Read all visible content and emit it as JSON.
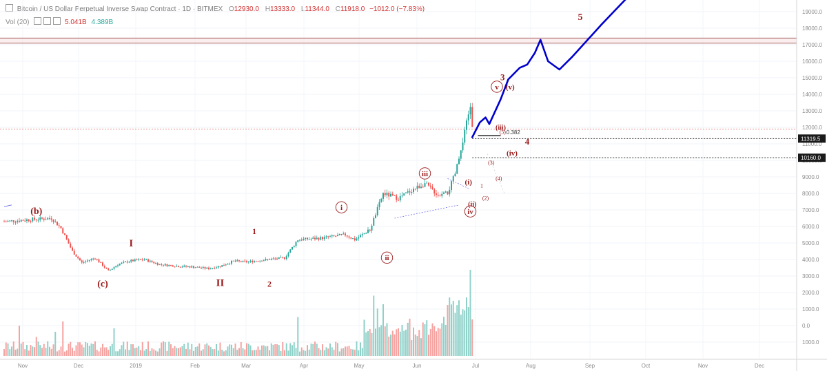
{
  "header": {
    "symbol": "Bitcoin / US Dollar Perpetual Inverse Swap Contract · 1D · BITMEX",
    "o_label": "O",
    "o": "12930.0",
    "h_label": "H",
    "h": "13333.0",
    "l_label": "L",
    "l": "11344.0",
    "c_label": "C",
    "c": "11918.0",
    "chg": "−1012.0 (−7.83%)"
  },
  "vol_indicator": {
    "label": "Vol (20)",
    "v1": "5.041B",
    "v2": "4.389B"
  },
  "colors": {
    "up": "#26a69a",
    "down": "#ef5350",
    "wave": "#0000cc",
    "label": "#9b1b1b",
    "hline": "#a33a3a"
  },
  "chart_data": {
    "type": "candlestick",
    "x_ticks": [
      "Nov",
      "Dec",
      "2019",
      "Feb",
      "Mar",
      "Apr",
      "May",
      "Jun",
      "Jul",
      "Aug",
      "Sep",
      "Oct",
      "Nov",
      "Dec"
    ],
    "price_ticks": [
      "19000.0",
      "18000.0",
      "17000.0",
      "16000.0",
      "15000.0",
      "14000.0",
      "13000.0",
      "12000.0",
      "11000.0",
      "10000.0",
      "9000.0",
      "8000.0",
      "7000.0",
      "6000.0",
      "5000.0",
      "4000.0",
      "3000.0",
      "2000.0",
      "1000.0",
      "0.0",
      "1000.0"
    ],
    "price_levels": [
      {
        "label": "11319.5",
        "value": 11319.5
      },
      {
        "label": "10160.0",
        "value": 10160.0
      }
    ],
    "horizontal_lines": [
      17400,
      17100,
      11900
    ],
    "fib": {
      "label": "0.382",
      "value": 11500
    },
    "anchors": [
      {
        "d": 0,
        "p": 6300
      },
      {
        "d": 12,
        "p": 6400
      },
      {
        "d": 25,
        "p": 6500
      },
      {
        "d": 30,
        "p": 5900
      },
      {
        "d": 36,
        "p": 4500
      },
      {
        "d": 41,
        "p": 3800
      },
      {
        "d": 48,
        "p": 4100
      },
      {
        "d": 55,
        "p": 3300
      },
      {
        "d": 60,
        "p": 3700
      },
      {
        "d": 66,
        "p": 3900
      },
      {
        "d": 74,
        "p": 4000
      },
      {
        "d": 82,
        "p": 3700
      },
      {
        "d": 92,
        "p": 3600
      },
      {
        "d": 100,
        "p": 3550
      },
      {
        "d": 108,
        "p": 3450
      },
      {
        "d": 114,
        "p": 3600
      },
      {
        "d": 121,
        "p": 3900
      },
      {
        "d": 128,
        "p": 3850
      },
      {
        "d": 135,
        "p": 3950
      },
      {
        "d": 148,
        "p": 4100
      },
      {
        "d": 155,
        "p": 5200
      },
      {
        "d": 168,
        "p": 5300
      },
      {
        "d": 180,
        "p": 5500
      },
      {
        "d": 185,
        "p": 5200
      },
      {
        "d": 193,
        "p": 5800
      },
      {
        "d": 200,
        "p": 8000
      },
      {
        "d": 208,
        "p": 7700
      },
      {
        "d": 215,
        "p": 8200
      },
      {
        "d": 222,
        "p": 8600
      },
      {
        "d": 229,
        "p": 7900
      },
      {
        "d": 234,
        "p": 8000
      },
      {
        "d": 238,
        "p": 9200
      },
      {
        "d": 242,
        "p": 11000
      },
      {
        "d": 244,
        "p": 12300
      },
      {
        "d": 246,
        "p": 13300
      },
      {
        "d": 247,
        "p": 11900
      }
    ],
    "volume_spikes": [
      {
        "d": 8,
        "v": 0.35
      },
      {
        "d": 17,
        "v": 0.22
      },
      {
        "d": 27,
        "v": 0.28
      },
      {
        "d": 31,
        "v": 0.4
      },
      {
        "d": 58,
        "v": 0.32
      },
      {
        "d": 155,
        "v": 0.45
      },
      {
        "d": 190,
        "v": 0.42
      },
      {
        "d": 195,
        "v": 0.7
      },
      {
        "d": 197,
        "v": 0.55
      },
      {
        "d": 200,
        "v": 0.6
      },
      {
        "d": 238,
        "v": 0.5
      },
      {
        "d": 244,
        "v": 0.68
      },
      {
        "d": 246,
        "v": 1.0
      }
    ],
    "projection": [
      {
        "d": 247,
        "p": 11400
      },
      {
        "d": 251,
        "p": 12300
      },
      {
        "d": 254,
        "p": 12600
      },
      {
        "d": 256,
        "p": 12200
      },
      {
        "d": 262,
        "p": 13700
      },
      {
        "d": 266,
        "p": 14900
      },
      {
        "d": 272,
        "p": 15600
      },
      {
        "d": 276,
        "p": 15800
      },
      {
        "d": 280,
        "p": 16500
      },
      {
        "d": 283,
        "p": 17300
      },
      {
        "d": 287,
        "p": 16000
      },
      {
        "d": 293,
        "p": 15500
      },
      {
        "d": 300,
        "p": 16300
      },
      {
        "d": 315,
        "p": 18200
      },
      {
        "d": 330,
        "p": 20000
      }
    ],
    "wave_labels": [
      {
        "text": "(b)",
        "d": 17,
        "p": 6750,
        "kind": "plain",
        "size": 14
      },
      {
        "text": "(c)",
        "d": 52,
        "p": 2350,
        "kind": "plain",
        "size": 14
      },
      {
        "text": "I",
        "d": 67,
        "p": 4800,
        "kind": "plain",
        "size": 15
      },
      {
        "text": "II",
        "d": 114,
        "p": 2400,
        "kind": "plain",
        "size": 15
      },
      {
        "text": "1",
        "d": 132,
        "p": 5550,
        "kind": "plain",
        "size": 12
      },
      {
        "text": "2",
        "d": 140,
        "p": 2350,
        "kind": "plain",
        "size": 12
      },
      {
        "text": "i",
        "d": 178,
        "p": 7000,
        "kind": "circle",
        "size": 11
      },
      {
        "text": "ii",
        "d": 202,
        "p": 3950,
        "kind": "circle",
        "size": 11
      },
      {
        "text": "iii",
        "d": 222,
        "p": 9050,
        "kind": "circle",
        "size": 11
      },
      {
        "text": "(i)",
        "d": 245,
        "p": 8550,
        "kind": "plain",
        "size": 11
      },
      {
        "text": "(ii)",
        "d": 247,
        "p": 7200,
        "kind": "plain",
        "size": 10
      },
      {
        "text": "iv",
        "d": 246,
        "p": 6750,
        "kind": "circle",
        "size": 11
      },
      {
        "text": "(iii)",
        "d": 262,
        "p": 11850,
        "kind": "plain",
        "size": 10
      },
      {
        "text": "(iv)",
        "d": 268,
        "p": 10300,
        "kind": "plain",
        "size": 11
      },
      {
        "text": "(v)",
        "d": 267,
        "p": 14300,
        "kind": "plain",
        "size": 11
      },
      {
        "text": "v",
        "d": 260,
        "p": 14300,
        "kind": "circle",
        "size": 11
      },
      {
        "text": "3",
        "d": 263,
        "p": 14850,
        "kind": "plain",
        "size": 13
      },
      {
        "text": "4",
        "d": 276,
        "p": 10950,
        "kind": "plain",
        "size": 13
      },
      {
        "text": "5",
        "d": 304,
        "p": 18500,
        "kind": "plain",
        "size": 14
      },
      {
        "text": "1",
        "d": 252,
        "p": 8350,
        "kind": "small",
        "size": 8
      },
      {
        "text": "(2)",
        "d": 254,
        "p": 7600,
        "kind": "small",
        "size": 8
      },
      {
        "text": "(3)",
        "d": 257,
        "p": 9750,
        "kind": "small",
        "size": 8
      },
      {
        "text": "(4)",
        "d": 261,
        "p": 8800,
        "kind": "small",
        "size": 8
      },
      {
        "text": "(5)",
        "d": 263,
        "p": 11600,
        "kind": "small",
        "size": 8
      }
    ]
  }
}
